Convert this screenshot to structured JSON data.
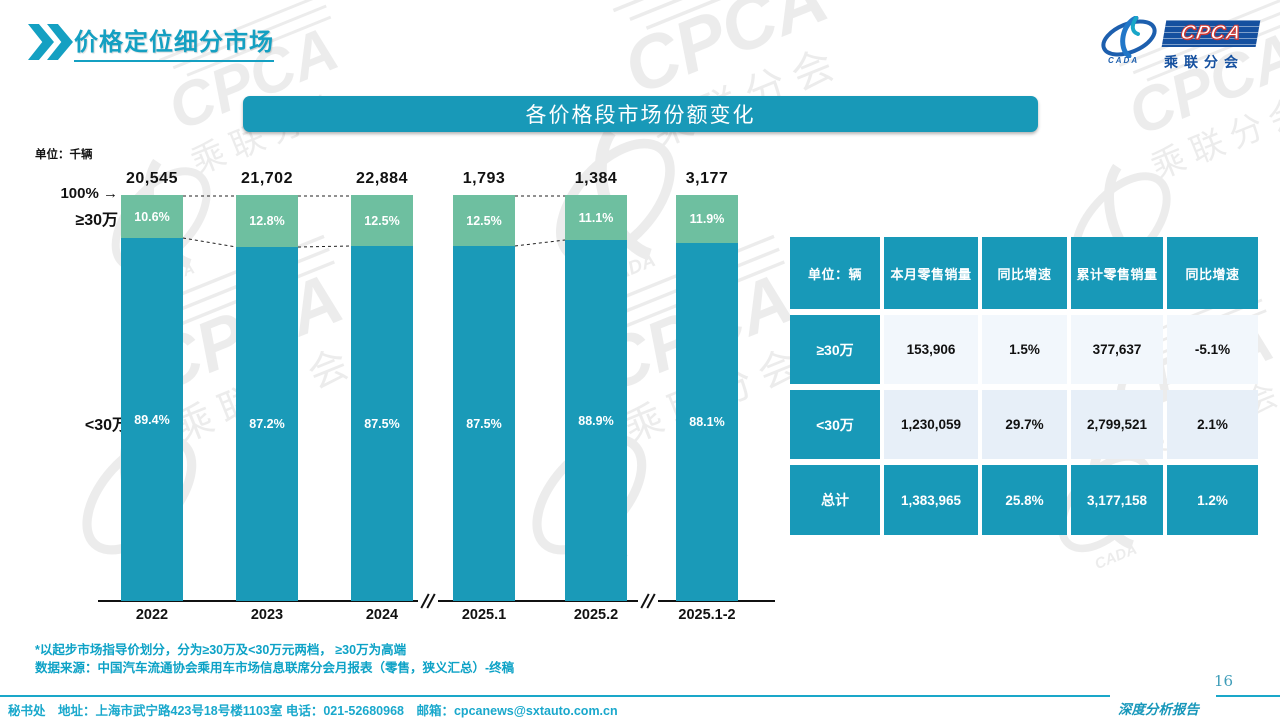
{
  "header": {
    "title": "价格定位细分市场",
    "logo": {
      "brand": "CPCA",
      "sub": "乘联分会",
      "cada": "CADA"
    }
  },
  "banner": {
    "title": "各价格段市场份额变化"
  },
  "chart_data": {
    "type": "bar",
    "stacked_percent": true,
    "title": "各价格段市场份额变化",
    "unit_label": "单位：千辆",
    "axis_top_label": "100%",
    "axis_top_arrow": "→",
    "xlabel": "",
    "ylabel": "",
    "ylim": [
      0,
      100
    ],
    "value_suffix": "%",
    "categories": [
      "2022",
      "2023",
      "2024",
      "2025.1",
      "2025.2",
      "2025.1-2"
    ],
    "totals": [
      "20,545",
      "21,702",
      "22,884",
      "1,793",
      "1,384",
      "3,177"
    ],
    "series": [
      {
        "name": "≥30万",
        "color": "#6ebfa0",
        "values": [
          10.6,
          12.8,
          12.5,
          12.5,
          11.1,
          11.9
        ]
      },
      {
        "name": "<30万",
        "color": "#1a9ab8",
        "values": [
          89.4,
          87.2,
          87.5,
          87.5,
          88.9,
          88.1
        ]
      }
    ],
    "connected_pairs": [
      [
        0,
        1
      ],
      [
        1,
        2
      ],
      [
        3,
        4
      ]
    ],
    "axis_breaks_between": [
      "2024|2025.1",
      "2025.2|2025.1-2"
    ]
  },
  "table": {
    "headers": [
      "单位：辆",
      "本月零售销量",
      "同比增速",
      "累计零售销量",
      "同比增速"
    ],
    "rows": [
      {
        "label": "≥30万",
        "cells": [
          "153,906",
          "1.5%",
          "377,637",
          "-5.1%"
        ],
        "type": "r1"
      },
      {
        "label": "<30万",
        "cells": [
          "1,230,059",
          "29.7%",
          "2,799,521",
          "2.1%"
        ],
        "type": "r2"
      },
      {
        "label": "总计",
        "cells": [
          "1,383,965",
          "25.8%",
          "3,177,158",
          "1.2%"
        ],
        "type": "total"
      }
    ]
  },
  "notes": {
    "line1": "*以起步市场指导价划分，分为≥30万及<30万元两档， ≥30万为高端",
    "line2": "数据来源：中国汽车流通协会乘用车市场信息联席分会月报表（零售，狭义汇总）-终稿"
  },
  "footer": {
    "contact": "秘书处　地址：上海市武宁路423号18号楼1103室 电话：021-52680968　邮箱：cpcanews@sxtauto.com.cn",
    "report_label": "深度分析报告",
    "page": "16"
  },
  "colors": {
    "teal": "#1899b8",
    "green": "#6ebfa0",
    "title_teal": "#14a0c2",
    "logo_blue": "#15509f",
    "logo_red": "#d03a35",
    "row_light": "#f2f7fc",
    "row_alt": "#e7eff8"
  }
}
